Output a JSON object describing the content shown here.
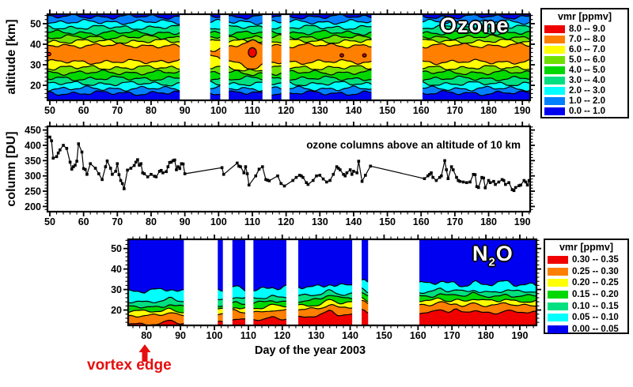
{
  "figure": {
    "bg": "#ffffff"
  },
  "labels": {
    "ozone_tag": "Ozone",
    "n2o_pre": "N",
    "n2o_sub": "2",
    "n2o_post": "O",
    "col_title": "ozone columns above an altitude of 10 km",
    "x_title": "Day of the year 2003",
    "vortex": "vortex edge",
    "alt_axis": "altitude [km]",
    "col_axis": "column [DU]"
  },
  "colors": {
    "annotation_red": "#e60e0e",
    "contour_line": "#000000",
    "scale": [
      "#0000F0",
      "#0080FF",
      "#00FFFF",
      "#00E080",
      "#00D800",
      "#70E000",
      "#FFFF00",
      "#FF7F00",
      "#F00000"
    ]
  },
  "legend_ozone": {
    "title": "vmr [ppmv]",
    "items": [
      {
        "color": "#F00000",
        "label": "8.0 -- 9.0"
      },
      {
        "color": "#FF7F00",
        "label": "7.0 -- 8.0"
      },
      {
        "color": "#FFFF00",
        "label": "6.0 -- 7.0"
      },
      {
        "color": "#70E000",
        "label": "5.0 -- 6.0"
      },
      {
        "color": "#00D800",
        "label": "4.0 -- 5.0"
      },
      {
        "color": "#00E080",
        "label": "3.0 -- 4.0"
      },
      {
        "color": "#00FFFF",
        "label": "2.0 -- 3.0"
      },
      {
        "color": "#0080FF",
        "label": "1.0 -- 2.0"
      },
      {
        "color": "#0000F0",
        "label": "0.0 -- 1.0"
      }
    ]
  },
  "legend_n2o": {
    "title": "vmr [ppmv]",
    "items": [
      {
        "color": "#F00000",
        "label": "0.30 -- 0.35"
      },
      {
        "color": "#FF7F00",
        "label": "0.25 -- 0.30"
      },
      {
        "color": "#FFFF00",
        "label": "0.20 -- 0.25"
      },
      {
        "color": "#00D800",
        "label": "0.15 -- 0.20"
      },
      {
        "color": "#00E080",
        "label": "0.10 -- 0.15"
      },
      {
        "color": "#00FFFF",
        "label": "0.05 -- 0.10"
      },
      {
        "color": "#0000F0",
        "label": "0.00 -- 0.05"
      }
    ]
  },
  "chart_data": [
    {
      "id": "ozone_contour",
      "type": "heatmap",
      "title": "Ozone",
      "units": "vmr [ppmv]",
      "x_label": "Day of the year 2003",
      "y_label": "altitude [km]",
      "x_range": [
        49.3,
        192.3
      ],
      "y_range": [
        12.7,
        54.6
      ],
      "x_ticks": [
        50,
        60,
        70,
        80,
        90,
        100,
        110,
        120,
        130,
        140,
        150,
        160,
        170,
        180,
        190
      ],
      "x_minor_step": 2,
      "y_ticks": [
        20,
        30,
        40,
        50
      ],
      "y_minor_step": 2,
      "levels_ppmv": [
        0,
        1,
        2,
        3,
        4,
        5,
        6,
        7,
        8,
        9
      ],
      "band_colors_bottom_to_top": [
        "#0000F0",
        "#0080FF",
        "#00FFFF",
        "#00E080",
        "#00D800",
        "#70E000",
        "#FFFF00",
        "#FF7F00",
        "#FFFF00",
        "#70E000",
        "#00D800",
        "#00E080",
        "#00FFFF",
        "#0080FF",
        "#0000F0"
      ],
      "band_boundaries_km": [
        16.2,
        18.4,
        20.8,
        23.3,
        26.2,
        28.6,
        31.4,
        39.4,
        41.4,
        43.4,
        45.6,
        48.2,
        50.8,
        53.4
      ],
      "data_gaps_days": [
        [
          88.5,
          97.5
        ],
        [
          100.5,
          103
        ],
        [
          113,
          115.7
        ],
        [
          118.6,
          121
        ],
        [
          145.3,
          160.4
        ]
      ],
      "vmr8_islands": [
        {
          "day": 49.8,
          "alt_km": 35.2,
          "r_days": 0.5,
          "r_km": 0.8,
          "color": "#F00000"
        },
        {
          "day": 110,
          "alt_km": 36,
          "r_days": 1.2,
          "r_km": 2.3,
          "color": "#F00000"
        },
        {
          "day": 136.5,
          "alt_km": 34.6,
          "r_days": 0.55,
          "r_km": 0.8,
          "color": "#C00000"
        },
        {
          "day": 143.2,
          "alt_km": 34.6,
          "r_days": 0.55,
          "r_km": 0.8,
          "color": "#C00000"
        }
      ],
      "features": {
        "pinch_day": 96,
        "pinch_width": 9,
        "bulge_day": 110,
        "bulge_width": 4.5
      }
    },
    {
      "id": "ozone_column",
      "type": "line",
      "title": "ozone columns above an altitude of 10 km",
      "y_label": "column [DU]",
      "x_range": [
        49.3,
        192.3
      ],
      "y_range": [
        183,
        462
      ],
      "x_ticks": [
        50,
        60,
        70,
        80,
        90,
        100,
        110,
        120,
        130,
        140,
        150,
        160,
        170,
        180,
        190
      ],
      "x_minor_step": 2,
      "y_ticks": [
        200,
        250,
        300,
        350,
        400,
        450
      ],
      "y_minor_step": 10,
      "marker": "square",
      "line_color": "#000000",
      "points": [
        [
          50,
          427
        ],
        [
          50.5,
          415
        ],
        [
          51,
          358
        ],
        [
          52,
          363
        ],
        [
          52.5,
          375
        ],
        [
          53,
          385
        ],
        [
          54,
          400
        ],
        [
          55,
          390
        ],
        [
          56,
          345
        ],
        [
          56.5,
          322
        ],
        [
          57,
          330
        ],
        [
          57.5,
          335
        ],
        [
          58,
          348
        ],
        [
          58.5,
          405
        ],
        [
          59.5,
          378
        ],
        [
          60,
          324
        ],
        [
          60.5,
          321
        ],
        [
          61,
          305
        ],
        [
          62,
          340
        ],
        [
          63.5,
          325
        ],
        [
          64.5,
          307
        ],
        [
          65.5,
          288
        ],
        [
          66.5,
          330
        ],
        [
          67,
          349
        ],
        [
          68,
          325
        ],
        [
          68.5,
          305
        ],
        [
          69.5,
          315
        ],
        [
          70,
          340
        ],
        [
          70.5,
          304
        ],
        [
          71,
          285
        ],
        [
          71.5,
          275
        ],
        [
          72,
          258
        ],
        [
          73,
          319
        ],
        [
          74,
          325
        ],
        [
          75,
          334
        ],
        [
          75.5,
          345
        ],
        [
          76,
          353
        ],
        [
          76.5,
          335
        ],
        [
          77,
          340
        ],
        [
          77.5,
          310
        ],
        [
          78,
          307
        ],
        [
          79,
          297
        ],
        [
          80,
          305
        ],
        [
          81,
          299
        ],
        [
          81.5,
          297
        ],
        [
          82.5,
          315
        ],
        [
          83,
          318
        ],
        [
          83.5,
          310
        ],
        [
          84.5,
          314
        ],
        [
          85,
          330
        ],
        [
          85.5,
          344
        ],
        [
          86,
          345
        ],
        [
          86.5,
          350
        ],
        [
          87,
          352
        ],
        [
          87.5,
          320
        ],
        [
          88,
          330
        ],
        [
          88.5,
          324
        ],
        [
          89,
          340
        ],
        [
          89.5,
          339
        ],
        [
          90,
          307
        ],
        [
          101,
          327
        ],
        [
          101.5,
          305
        ],
        [
          105.5,
          342
        ],
        [
          106,
          332
        ],
        [
          106.5,
          330
        ],
        [
          107.5,
          310
        ],
        [
          108,
          330
        ],
        [
          108.5,
          307
        ],
        [
          109,
          270
        ],
        [
          111,
          300
        ],
        [
          112,
          322
        ],
        [
          113,
          330
        ],
        [
          114,
          288
        ],
        [
          114.5,
          286
        ],
        [
          115,
          284
        ],
        [
          117.5,
          300
        ],
        [
          118.5,
          275
        ],
        [
          119.5,
          267
        ],
        [
          122,
          285
        ],
        [
          123,
          295
        ],
        [
          124,
          302
        ],
        [
          124.5,
          300
        ],
        [
          125,
          295
        ],
        [
          126,
          278
        ],
        [
          126.5,
          272
        ],
        [
          128,
          285
        ],
        [
          129,
          300
        ],
        [
          130,
          302
        ],
        [
          131,
          290
        ],
        [
          132,
          280
        ],
        [
          133,
          285
        ],
        [
          134,
          305
        ],
        [
          135,
          330
        ],
        [
          135.5,
          325
        ],
        [
          136,
          320
        ],
        [
          137,
          305
        ],
        [
          137.5,
          300
        ],
        [
          138,
          310
        ],
        [
          139,
          320
        ],
        [
          139.5,
          305
        ],
        [
          140,
          315
        ],
        [
          141,
          310
        ],
        [
          141.5,
          348
        ],
        [
          142.5,
          282
        ],
        [
          143.5,
          302
        ],
        [
          145,
          332
        ],
        [
          161,
          291
        ],
        [
          162,
          300
        ],
        [
          162.5,
          305
        ],
        [
          163,
          310
        ],
        [
          163.5,
          295
        ],
        [
          164.5,
          285
        ],
        [
          165.5,
          295
        ],
        [
          166,
          300
        ],
        [
          167,
          350
        ],
        [
          167.5,
          320
        ],
        [
          168,
          291
        ],
        [
          169,
          330
        ],
        [
          169.5,
          320
        ],
        [
          170.5,
          295
        ],
        [
          171,
          285
        ],
        [
          171.5,
          282
        ],
        [
          172.5,
          280
        ],
        [
          173.5,
          278
        ],
        [
          174.5,
          280
        ],
        [
          175.5,
          305
        ],
        [
          176,
          304
        ],
        [
          176.5,
          265
        ],
        [
          177,
          262
        ],
        [
          178,
          295
        ],
        [
          178.5,
          293
        ],
        [
          179,
          261
        ],
        [
          180,
          285
        ],
        [
          180.5,
          278
        ],
        [
          181.5,
          282
        ],
        [
          182,
          272
        ],
        [
          183,
          280
        ],
        [
          184,
          288
        ],
        [
          184.5,
          285
        ],
        [
          185,
          272
        ],
        [
          186,
          278
        ],
        [
          187,
          255
        ],
        [
          187.5,
          252
        ],
        [
          188,
          262
        ],
        [
          189,
          268
        ],
        [
          189.5,
          270
        ],
        [
          190.5,
          285
        ],
        [
          191,
          280
        ],
        [
          191.5,
          270
        ],
        [
          192,
          285
        ]
      ]
    },
    {
      "id": "n2o_contour",
      "type": "heatmap",
      "title": "N2O",
      "units": "vmr [ppmv]",
      "x_label": "Day of the year 2003",
      "y_label": "altitude [km]",
      "x_range": [
        74.6,
        194.9
      ],
      "y_range": [
        12.5,
        54.5
      ],
      "x_ticks": [
        80,
        90,
        100,
        110,
        120,
        130,
        140,
        150,
        160,
        170,
        180,
        190
      ],
      "x_minor_step": 2,
      "y_ticks": [
        20,
        30,
        40,
        50
      ],
      "y_minor_step": 2,
      "levels_ppmv": [
        0,
        0.05,
        0.1,
        0.15,
        0.2,
        0.25,
        0.3,
        0.35
      ],
      "band_colors_bottom_to_top": [
        "#F00000",
        "#FF7F00",
        "#FFFF00",
        "#00D800",
        "#00E080",
        "#00FFFF",
        "#0000F0"
      ],
      "band_boundaries_early_km": [
        13.3,
        17.3,
        19.3,
        21.6,
        24.2,
        29.2
      ],
      "band_boundaries_late_km": [
        18.8,
        22.3,
        24.4,
        26.8,
        28.9,
        32.6
      ],
      "data_gaps_days": [
        [
          91,
          101
        ],
        [
          102.5,
          105.3
        ],
        [
          109.1,
          111.5
        ],
        [
          121.2,
          124.7
        ],
        [
          140.6,
          143.4
        ],
        [
          145.3,
          160.4
        ]
      ],
      "spikes": [
        {
          "day": 87,
          "amp": 1.6,
          "w": 1.6
        },
        {
          "day": 106,
          "amp": 1.1,
          "w": 1.4
        },
        {
          "day": 117,
          "amp": 0.9,
          "w": 1.3
        },
        {
          "day": 134,
          "amp": 2.3,
          "w": 1.8
        },
        {
          "day": 143.5,
          "amp": 2.8,
          "w": 1.3
        },
        {
          "day": 166.5,
          "amp": 1.6,
          "w": 1.6
        },
        {
          "day": 171,
          "amp": 1.0,
          "w": 1.2
        },
        {
          "day": 176.5,
          "amp": 1.3,
          "w": 1.4
        },
        {
          "day": 186,
          "amp": 1.0,
          "w": 1.4
        }
      ],
      "annotation": {
        "text": "vortex edge",
        "day": 79.5
      }
    }
  ]
}
